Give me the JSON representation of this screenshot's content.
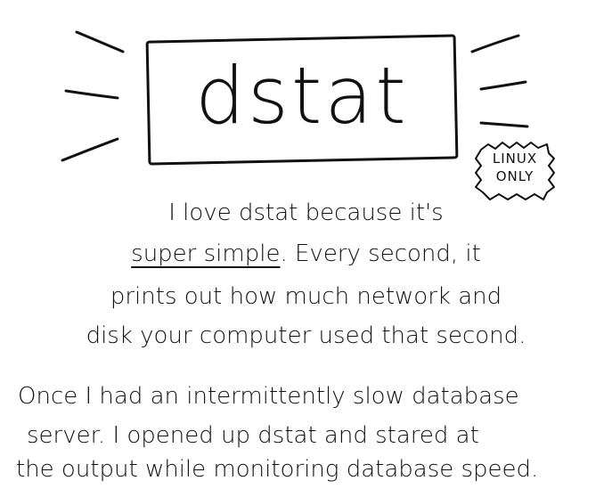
{
  "title": "dstat",
  "badge": {
    "line1": "LINUX",
    "line2": "ONLY"
  },
  "paragraph1": {
    "line1": "I love dstat because it's",
    "line2_underlined": "super simple",
    "line2_rest": ". Every second, it",
    "line3": "prints out how much network and",
    "line4": "disk your computer used that second."
  },
  "paragraph2": {
    "line1": "Once I had an intermittently slow database",
    "line2": "server. I opened up dstat and stared at",
    "line3": "the output while monitoring database speed."
  },
  "colors": {
    "ink": "#111111",
    "background": "#ffffff"
  }
}
